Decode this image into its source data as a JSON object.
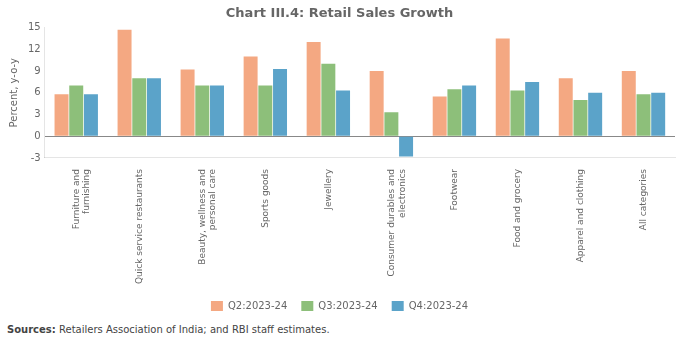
{
  "chart_data": {
    "type": "bar",
    "title": "Chart III.4: Retail Sales Growth",
    "y_label": "Percent, y-o-y",
    "categories": [
      "Furniture and\nfurnishing",
      "Quick service restaurants",
      "Beauty, wellness and\npersonal care",
      "Sports goods",
      "Jewellery",
      "Consumer durables and\nelectronics",
      "Footwear",
      "Food and grocery",
      "Apparel and clothing",
      "All categories"
    ],
    "series": [
      {
        "name": "Q2:2023-24",
        "color": "#F4A882",
        "values": [
          5.8,
          14.7,
          9.2,
          11.0,
          13.0,
          9.0,
          5.5,
          13.5,
          8.0,
          9.0
        ]
      },
      {
        "name": "Q3:2023-24",
        "color": "#8DBF7A",
        "values": [
          7.0,
          8.0,
          7.0,
          7.0,
          10.0,
          3.3,
          6.5,
          6.3,
          5.0,
          5.8
        ]
      },
      {
        "name": "Q4:2023-24",
        "color": "#5BA3C9",
        "values": [
          5.8,
          8.0,
          7.0,
          9.3,
          6.3,
          -2.8,
          7.0,
          7.5,
          6.0,
          6.0
        ]
      }
    ],
    "ylim": [
      -3,
      15
    ],
    "yticks": [
      -3,
      0,
      3,
      6,
      9,
      12,
      15
    ],
    "grid": false,
    "legend": "bottom",
    "annotations": [
      "Sources: Retailers Association of India; and RBI staff estimates."
    ]
  }
}
